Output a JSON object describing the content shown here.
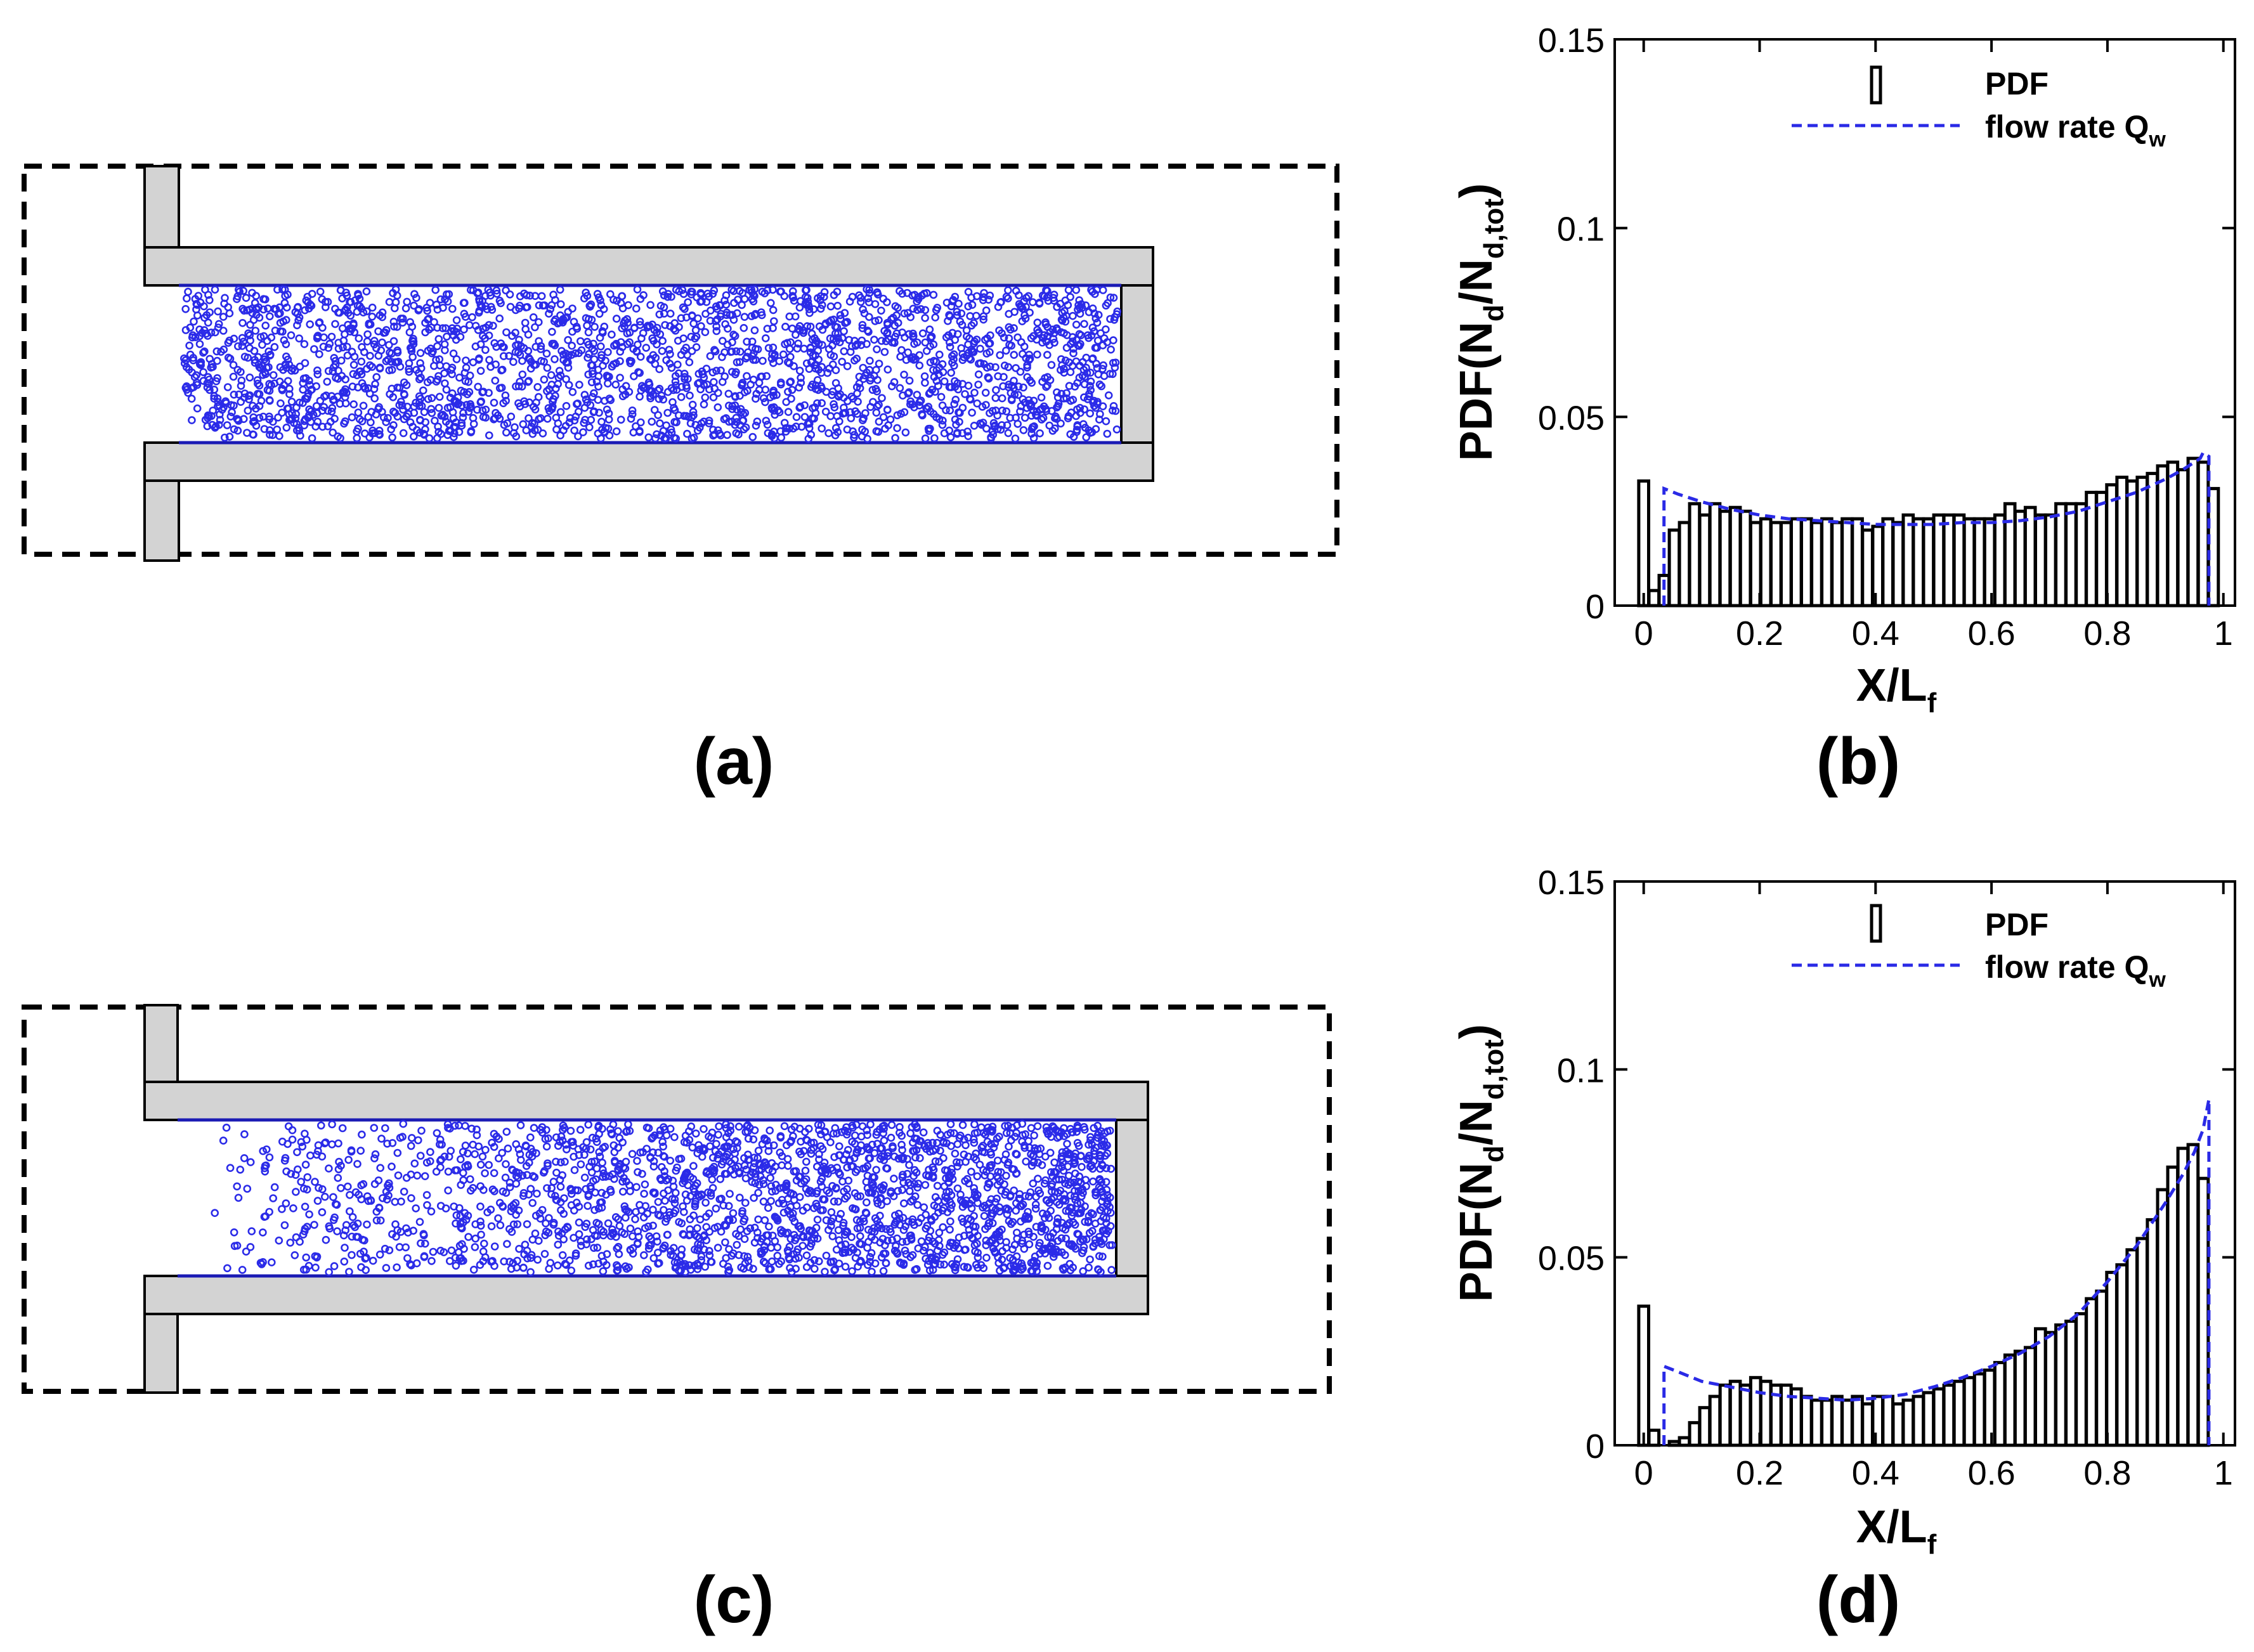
{
  "panel_labels": {
    "a": "(a)",
    "b": "(b)",
    "c": "(c)",
    "d": "(d)"
  },
  "colors": {
    "droplets": "#2b2be8",
    "model_line": "#2a2ae6",
    "wall": "#d3d3d3"
  },
  "chart_data": [
    {
      "id": "b",
      "type": "bar",
      "xlabel": "X/L",
      "xlabel_sub": "f",
      "ylabel": "PDF(N",
      "ylabel_sub1": "d",
      "ylabel_mid": "/N",
      "ylabel_sub2": "d,tot",
      "ylabel_end": ")",
      "xlim": [
        -0.05,
        1.02
      ],
      "ylim": [
        0,
        0.15
      ],
      "xticks": [
        0,
        0.2,
        0.4,
        0.6,
        0.8,
        1
      ],
      "xtick_labels": [
        "0",
        "0.2",
        "0.4",
        "0.6",
        "0.8",
        "1"
      ],
      "yticks": [
        0,
        0.05,
        0.1,
        0.15
      ],
      "ytick_labels": [
        "0",
        "0.05",
        "0.1",
        "0.15"
      ],
      "legend": {
        "bar_label": "PDF",
        "line_label": "flow rate Q",
        "line_sub": "w",
        "position": "top-right"
      },
      "bin_width": 0.0171,
      "series": [
        {
          "name": "PDF",
          "x": [
            0.0,
            0.0176,
            0.0351,
            0.0527,
            0.0702,
            0.0878,
            0.1053,
            0.1229,
            0.1404,
            0.158,
            0.1755,
            0.1931,
            0.2106,
            0.2282,
            0.2457,
            0.2633,
            0.2808,
            0.2984,
            0.3159,
            0.3335,
            0.351,
            0.3686,
            0.3861,
            0.4037,
            0.4212,
            0.4388,
            0.4563,
            0.4739,
            0.4914,
            0.509,
            0.5265,
            0.5441,
            0.5616,
            0.5792,
            0.5967,
            0.6143,
            0.6318,
            0.6494,
            0.6669,
            0.6845,
            0.702,
            0.7196,
            0.7371,
            0.7547,
            0.7722,
            0.7898,
            0.8073,
            0.8249,
            0.8424,
            0.86,
            0.8775,
            0.8951,
            0.9126,
            0.9302,
            0.9477,
            0.9653,
            0.9828
          ],
          "values": [
            0.033,
            0.004,
            0.008,
            0.02,
            0.022,
            0.027,
            0.024,
            0.027,
            0.025,
            0.026,
            0.025,
            0.022,
            0.023,
            0.022,
            0.022,
            0.023,
            0.023,
            0.022,
            0.023,
            0.022,
            0.023,
            0.023,
            0.02,
            0.021,
            0.023,
            0.022,
            0.024,
            0.023,
            0.023,
            0.024,
            0.024,
            0.024,
            0.023,
            0.023,
            0.023,
            0.024,
            0.027,
            0.025,
            0.026,
            0.024,
            0.024,
            0.027,
            0.027,
            0.027,
            0.03,
            0.03,
            0.032,
            0.034,
            0.033,
            0.034,
            0.035,
            0.037,
            0.038,
            0.036,
            0.039,
            0.038,
            0.031
          ]
        },
        {
          "name": "flow rate Q_w",
          "x": [
            0.035,
            0.035,
            0.06,
            0.1,
            0.15,
            0.2,
            0.25,
            0.3,
            0.35,
            0.4,
            0.45,
            0.5,
            0.55,
            0.6,
            0.65,
            0.7,
            0.75,
            0.8,
            0.85,
            0.9,
            0.93,
            0.96,
            0.965,
            0.975,
            0.975
          ],
          "values": [
            0.0,
            0.031,
            0.0295,
            0.0275,
            0.0255,
            0.024,
            0.023,
            0.0225,
            0.022,
            0.0215,
            0.0215,
            0.0215,
            0.022,
            0.022,
            0.0225,
            0.0235,
            0.025,
            0.0275,
            0.03,
            0.0335,
            0.036,
            0.039,
            0.0405,
            0.0395,
            0.0
          ]
        }
      ]
    },
    {
      "id": "d",
      "type": "bar",
      "xlabel": "X/L",
      "xlabel_sub": "f",
      "ylabel": "PDF(N",
      "ylabel_sub1": "d",
      "ylabel_mid": "/N",
      "ylabel_sub2": "d,tot",
      "ylabel_end": ")",
      "xlim": [
        -0.05,
        1.02
      ],
      "ylim": [
        0,
        0.15
      ],
      "xticks": [
        0,
        0.2,
        0.4,
        0.6,
        0.8,
        1
      ],
      "xtick_labels": [
        "0",
        "0.2",
        "0.4",
        "0.6",
        "0.8",
        "1"
      ],
      "yticks": [
        0,
        0.05,
        0.1,
        0.15
      ],
      "ytick_labels": [
        "0",
        "0.05",
        "0.1",
        "0.15"
      ],
      "legend": {
        "bar_label": "PDF",
        "line_label": "flow rate Q",
        "line_sub": "w",
        "position": "top-right"
      },
      "bin_width": 0.0171,
      "series": [
        {
          "name": "PDF",
          "x": [
            0.0,
            0.0176,
            0.0351,
            0.0527,
            0.0702,
            0.0878,
            0.1053,
            0.1229,
            0.1404,
            0.158,
            0.1755,
            0.1931,
            0.2106,
            0.2282,
            0.2457,
            0.2633,
            0.2808,
            0.2984,
            0.3159,
            0.3335,
            0.351,
            0.3686,
            0.3861,
            0.4037,
            0.4212,
            0.4388,
            0.4563,
            0.4739,
            0.4914,
            0.509,
            0.5265,
            0.5441,
            0.5616,
            0.5792,
            0.5967,
            0.6143,
            0.6318,
            0.6494,
            0.6669,
            0.6845,
            0.702,
            0.7196,
            0.7371,
            0.7547,
            0.7722,
            0.7898,
            0.8073,
            0.8249,
            0.8424,
            0.86,
            0.8775,
            0.8951,
            0.9126,
            0.9302,
            0.9477,
            0.9653,
            0.9828
          ],
          "values": [
            0.037,
            0.004,
            0.0,
            0.001,
            0.002,
            0.006,
            0.01,
            0.013,
            0.016,
            0.017,
            0.016,
            0.018,
            0.017,
            0.016,
            0.016,
            0.015,
            0.013,
            0.012,
            0.012,
            0.013,
            0.012,
            0.013,
            0.011,
            0.013,
            0.013,
            0.011,
            0.012,
            0.013,
            0.014,
            0.015,
            0.016,
            0.017,
            0.018,
            0.019,
            0.02,
            0.022,
            0.024,
            0.025,
            0.026,
            0.031,
            0.03,
            0.032,
            0.033,
            0.035,
            0.039,
            0.041,
            0.046,
            0.048,
            0.052,
            0.055,
            0.06,
            0.068,
            0.074,
            0.079,
            0.08,
            0.071,
            0.0
          ]
        },
        {
          "name": "flow rate Q_w",
          "x": [
            0.035,
            0.035,
            0.06,
            0.1,
            0.15,
            0.2,
            0.25,
            0.3,
            0.35,
            0.4,
            0.45,
            0.5,
            0.55,
            0.6,
            0.65,
            0.7,
            0.75,
            0.8,
            0.85,
            0.9,
            0.93,
            0.95,
            0.965,
            0.975,
            0.975
          ],
          "values": [
            0.0,
            0.021,
            0.0195,
            0.017,
            0.0155,
            0.014,
            0.013,
            0.0125,
            0.012,
            0.0125,
            0.0135,
            0.0155,
            0.018,
            0.021,
            0.0245,
            0.029,
            0.035,
            0.0435,
            0.053,
            0.0645,
            0.072,
            0.078,
            0.084,
            0.092,
            0.0
          ]
        }
      ]
    }
  ]
}
